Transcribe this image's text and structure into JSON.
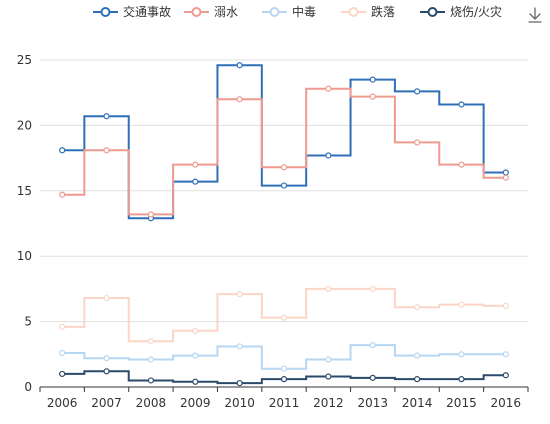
{
  "toolbar": {
    "download_icon": "download-icon"
  },
  "chart_data": {
    "type": "line",
    "step": "middle",
    "legend_position": "top",
    "grid": true,
    "x": [
      "2006",
      "2007",
      "2008",
      "2009",
      "2010",
      "2011",
      "2012",
      "2013",
      "2014",
      "2015",
      "2016"
    ],
    "ylim": [
      0,
      25
    ],
    "yticks": [
      0,
      5,
      10,
      15,
      20,
      25
    ],
    "series": [
      {
        "name": "交通事故",
        "color": "#2f6fb8",
        "values": [
          18.1,
          20.7,
          12.9,
          15.7,
          24.6,
          15.4,
          17.7,
          23.5,
          22.6,
          21.6,
          16.4
        ]
      },
      {
        "name": "溺水",
        "color": "#ef9a8f",
        "values": [
          14.7,
          18.1,
          13.2,
          17.0,
          22.0,
          16.8,
          22.8,
          22.2,
          18.7,
          17.0,
          16.0
        ]
      },
      {
        "name": "中毒",
        "color": "#b6d6f2",
        "values": [
          2.6,
          2.2,
          2.1,
          2.4,
          3.1,
          1.4,
          2.1,
          3.2,
          2.4,
          2.5,
          2.5
        ]
      },
      {
        "name": "跌落",
        "color": "#fbd5c5",
        "values": [
          4.6,
          6.8,
          3.5,
          4.3,
          7.1,
          5.3,
          7.5,
          7.5,
          6.1,
          6.3,
          6.2
        ]
      },
      {
        "name": "烧伤/火灾",
        "color": "#2a4a6b",
        "values": [
          1.0,
          1.2,
          0.5,
          0.4,
          0.3,
          0.6,
          0.8,
          0.7,
          0.6,
          0.6,
          0.9
        ]
      }
    ]
  }
}
